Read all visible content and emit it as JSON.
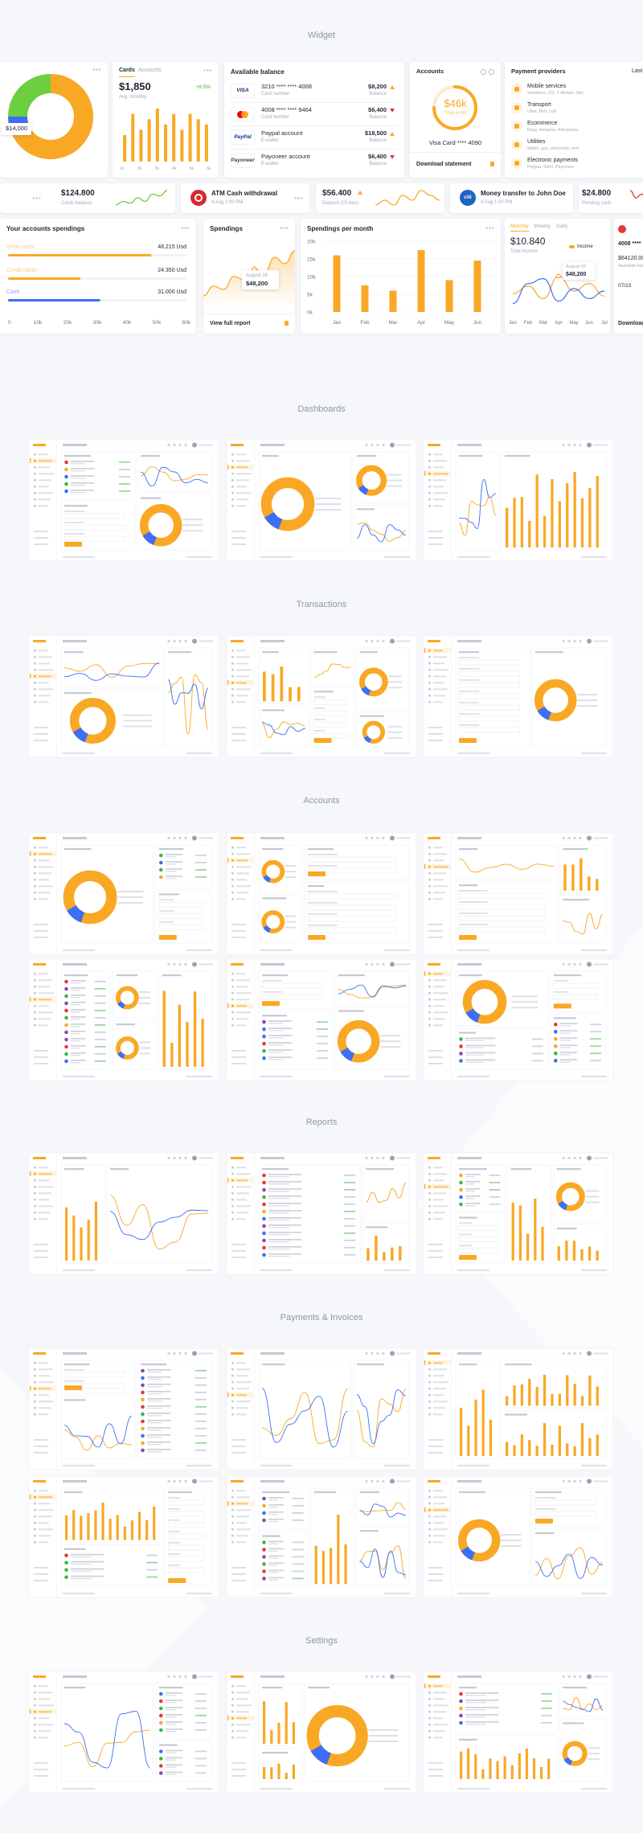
{
  "sections": [
    "Widget",
    "Dashboards",
    "Transactions",
    "Accounts",
    "Reports",
    "Payments & Invoices",
    "Settings"
  ],
  "donut": {
    "label": "$14,000",
    "values": [
      68,
      7,
      25
    ],
    "colors": [
      "#f9a825",
      "#3d6ef5",
      "#6ccf3f"
    ]
  },
  "cards_widget": {
    "tabs": [
      "Cards",
      "Accounts"
    ],
    "amount": "$1,850",
    "change": "+8.5%",
    "caption": "Avg. monthly",
    "values": [
      5,
      9,
      6,
      8,
      10,
      7,
      9,
      6,
      9,
      8,
      7
    ],
    "ylim": [
      0,
      10
    ],
    "color": "#f9a825",
    "x_labels": [
      "1k",
      "2k",
      "3k",
      "4k",
      "5k",
      "6k"
    ]
  },
  "balance": {
    "title": "Available balance",
    "items": [
      {
        "logo": "VISA",
        "name": "3210 **** **** 4008",
        "sub": "Card number",
        "amount": "$8,200",
        "amount_label": "Balance"
      },
      {
        "name": "4008 **** **** 9464",
        "sub": "Card number",
        "amount": "$6,400",
        "amount_label": "Balance"
      },
      {
        "logo": "PayPal",
        "name": "Paypal account",
        "sub": "E-wallet",
        "amount": "$18,500",
        "amount_label": "Balance"
      },
      {
        "logo": "Payoneer",
        "name": "Payoneer account",
        "sub": "E-wallet",
        "amount": "$6,400",
        "amount_label": "Balance"
      }
    ]
  },
  "accounts": {
    "title": "Accounts",
    "value": "$46k",
    "caption": "Total profit",
    "gauge": 75,
    "card": "Visa Card **** 4090",
    "link": "Download statement"
  },
  "providers": {
    "title": "Payment providers",
    "extra": "Last",
    "items": [
      {
        "name": "Mobile services",
        "sub": "Vodafone, O2, T-Mobile, Sky"
      },
      {
        "name": "Transport",
        "sub": "Uber, Bolt, Lyft"
      },
      {
        "name": "Ecommerce",
        "sub": "Ebay, Amazon, Aliexpress"
      },
      {
        "name": "Utilities",
        "sub": "Water, gas, electricity, rent"
      },
      {
        "name": "Electronic payments",
        "sub": "Paypal, Skrill, Payoneer"
      }
    ]
  },
  "row2": {
    "cards_balance": {
      "value": "$124.800",
      "caption": "Cards balance",
      "trend": [
        3,
        4,
        3.5,
        5,
        4,
        6,
        5.5,
        7
      ],
      "color": "#6ccf3f"
    },
    "atm": {
      "title": "ATM Cash withdrawal",
      "date": "4 Aug 1:00 PM"
    },
    "deposit": {
      "value": "$56.400",
      "caption": "Deposit (15.Nov)",
      "trend": [
        5,
        6,
        5,
        7,
        6,
        8,
        7,
        6
      ],
      "color": "#f9a825"
    },
    "transfer": {
      "logo": "citi",
      "title": "Money transfer to John Doe",
      "date": "4 Aug 1:00 PM"
    },
    "pending": {
      "value": "$24.800",
      "caption": "Pending cash",
      "trend": [
        7,
        5,
        6,
        4,
        5,
        3
      ],
      "color": "#e53935"
    }
  },
  "account_spendings": {
    "title": "Your accounts spendings",
    "items": [
      {
        "name": "Debit cards",
        "value": 48215,
        "label": "48.215 Usd",
        "color": "#f9a825"
      },
      {
        "name": "Credit cards",
        "value": 24350,
        "label": "24.350 Usd",
        "color": "#f9a825"
      },
      {
        "name": "Cash",
        "value": 31000,
        "label": "31.000 Usd",
        "color": "#3d6ef5"
      }
    ],
    "xlim": [
      0,
      60000
    ],
    "xticks": [
      0,
      {
        "value": 10000,
        "label": "10k"
      },
      {
        "value": 20000,
        "label": "20k"
      },
      {
        "value": 30000,
        "label": "30k"
      },
      {
        "value": 40000,
        "label": "40k"
      },
      {
        "value": 50000,
        "label": "50k"
      },
      {
        "value": 60000,
        "label": "60k"
      }
    ]
  },
  "spendings": {
    "title": "Spendings",
    "date": "August 16",
    "amount": "$48,200",
    "link": "View full report",
    "values": [
      20,
      35,
      30,
      50,
      45,
      62,
      55,
      80,
      70,
      90
    ],
    "ylim": [
      0,
      100
    ],
    "color": "#f9a825"
  },
  "per_month": {
    "title": "Spendings per month",
    "categories": [
      "Jan",
      "Feb",
      "Mar",
      "Apr",
      "May",
      "Jun"
    ],
    "values": [
      16000,
      7500,
      6000,
      17500,
      9000,
      14500
    ],
    "ylim": [
      0,
      20000
    ],
    "yticks": [
      {
        "value": 0,
        "label": "0k"
      },
      {
        "value": 5000,
        "label": "5k"
      },
      {
        "value": 10000,
        "label": "10k"
      },
      {
        "value": 15000,
        "label": "15k"
      },
      {
        "value": 20000,
        "label": "20k"
      }
    ],
    "color": "#f9a825"
  },
  "income": {
    "tabs": [
      "Monthly",
      "Weekly",
      "Daily"
    ],
    "amount": "$10.840",
    "caption": "Total income",
    "legend": "Income",
    "date": "August 16",
    "value": "$48,200",
    "categories": [
      "Jan",
      "Feb",
      "Mar",
      "Apr",
      "May",
      "Jun",
      "Jul"
    ],
    "ylim": [
      0,
      100
    ],
    "series": [
      {
        "color": "#f9a825",
        "values": [
          40,
          55,
          30,
          75,
          45,
          60,
          35
        ]
      },
      {
        "color": "#3d6ef5",
        "values": [
          20,
          60,
          70,
          25,
          50,
          30,
          45
        ]
      }
    ]
  },
  "partial": {
    "number": "4008 ****",
    "balance": "$64120.00",
    "caption": "Available balance",
    "expiry": "07/23",
    "link": "Download st"
  }
}
